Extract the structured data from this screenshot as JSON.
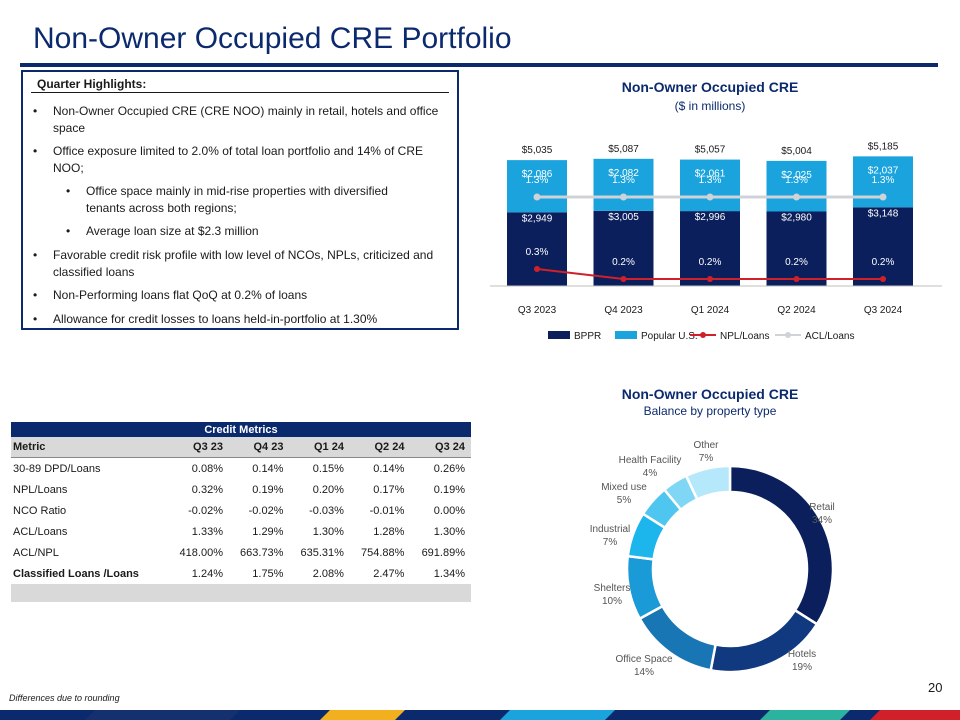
{
  "page": {
    "title": "Non-Owner Occupied CRE Portfolio",
    "footnote": "Differences due to rounding",
    "page_number": "20"
  },
  "highlights": {
    "title": "Quarter Highlights:",
    "items": [
      {
        "bullet": "•",
        "text": "Non-Owner Occupied CRE (CRE NOO) mainly in retail, hotels and office space"
      },
      {
        "bullet": "•",
        "text": "Office exposure limited to 2.0% of total loan portfolio and 14% of CRE NOO;"
      },
      {
        "bullet": "•",
        "text": "Office space mainly in mid-rise properties with diversified tenants across both regions;"
      },
      {
        "bullet": "•",
        "text": "Average loan size at $2.3 million"
      },
      {
        "bullet": "•",
        "text": "Favorable credit risk profile with low level of NCOs, NPLs,  criticized and classified loans"
      },
      {
        "bullet": "•",
        "text": "Non-Performing loans flat QoQ at 0.2% of loans"
      },
      {
        "bullet": "•",
        "text": "Allowance for credit losses to loans held-in-portfolio at 1.30%"
      }
    ]
  },
  "bar_chart": {
    "title": "Non-Owner Occupied CRE",
    "subtitle": "($ in millions)"
  },
  "donut_chart": {
    "title": "Non-Owner Occupied CRE",
    "subtitle": "Balance by property type"
  },
  "credit_metrics": {
    "caption": "Credit Metrics",
    "headers": [
      "Metric",
      "Q3 23",
      "Q4 23",
      "Q1 24",
      "Q2 24",
      "Q3 24"
    ],
    "rows": [
      [
        "30-89 DPD/Loans",
        "0.08%",
        "0.14%",
        "0.15%",
        "0.14%",
        "0.26%"
      ],
      [
        "NPL/Loans",
        "0.32%",
        "0.19%",
        "0.20%",
        "0.17%",
        "0.19%"
      ],
      [
        "NCO Ratio",
        "-0.02%",
        "-0.02%",
        "-0.03%",
        "-0.01%",
        "0.00%"
      ],
      [
        "ACL/Loans",
        "1.33%",
        "1.29%",
        "1.30%",
        "1.28%",
        "1.30%"
      ],
      [
        "ACL/NPL",
        "418.00%",
        "663.73%",
        "635.31%",
        "754.88%",
        "691.89%"
      ],
      [
        "Classified Loans /Loans",
        "1.24%",
        "1.75%",
        "2.08%",
        "2.47%",
        "1.34%"
      ]
    ]
  },
  "colors": {
    "navy": "#0b2a6e",
    "bppr": "#0b1f5c",
    "popular_us": "#1aa3dc",
    "npl_line": "#d0202a",
    "acl_line": "#cfd3d8"
  },
  "chart_data": [
    {
      "type": "bar",
      "stacked": true,
      "title": "Non-Owner Occupied CRE",
      "subtitle": "($ in millions)",
      "categories": [
        "Q3 2023",
        "Q4 2023",
        "Q1 2024",
        "Q2 2024",
        "Q3 2024"
      ],
      "totals": [
        "$5,035",
        "$5,087",
        "$5,057",
        "$5,004",
        "$5,185"
      ],
      "series": [
        {
          "name": "BPPR",
          "kind": "bar",
          "values": [
            2949,
            3005,
            2996,
            2980,
            3148
          ],
          "labels": [
            "$2,949",
            "$3,005",
            "$2,996",
            "$2,980",
            "$3,148"
          ],
          "color": "#0b1f5c"
        },
        {
          "name": "Popular U.S.",
          "kind": "bar",
          "values": [
            2086,
            2082,
            2061,
            2025,
            2037
          ],
          "labels": [
            "$2,086",
            "$2,082",
            "$2,061",
            "$2,025",
            "$2,037"
          ],
          "color": "#1aa3dc"
        },
        {
          "name": "NPL/Loans",
          "kind": "line",
          "values": [
            0.3,
            0.2,
            0.2,
            0.2,
            0.2
          ],
          "labels": [
            "0.3%",
            "0.2%",
            "0.2%",
            "0.2%",
            "0.2%"
          ],
          "color": "#d0202a"
        },
        {
          "name": "ACL/Loans",
          "kind": "line",
          "values": [
            1.3,
            1.3,
            1.3,
            1.3,
            1.3
          ],
          "labels": [
            "1.3%",
            "1.3%",
            "1.3%",
            "1.3%",
            "1.3%"
          ],
          "color": "#cfd3d8"
        }
      ],
      "legend": "bottom"
    },
    {
      "type": "pie",
      "donut": true,
      "title": "Non-Owner Occupied CRE",
      "subtitle": "Balance by property type",
      "slices": [
        {
          "label": "Retail",
          "pct_label": "34%",
          "value": 34,
          "color": "#0b1f5c"
        },
        {
          "label": "Hotels",
          "pct_label": "19%",
          "value": 19,
          "color": "#10397f"
        },
        {
          "label": "Office Space",
          "pct_label": "14%",
          "value": 14,
          "color": "#1976b5"
        },
        {
          "label": "Shelters",
          "pct_label": "10%",
          "value": 10,
          "color": "#1a9bd8"
        },
        {
          "label": "Industrial",
          "pct_label": "7%",
          "value": 7,
          "color": "#1cb6ec"
        },
        {
          "label": "Mixed use",
          "pct_label": "5%",
          "value": 5,
          "color": "#4ec6f0"
        },
        {
          "label": "Health Facility",
          "pct_label": "4%",
          "value": 4,
          "color": "#7fd6f5"
        },
        {
          "label": "Other",
          "pct_label": "7%",
          "value": 7,
          "color": "#b5e8fa"
        }
      ]
    }
  ]
}
